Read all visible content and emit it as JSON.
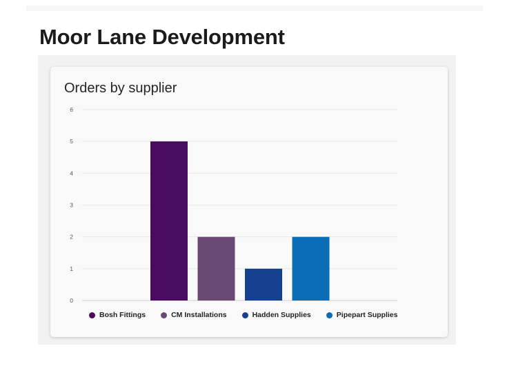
{
  "page": {
    "title": "Moor Lane Development"
  },
  "card": {
    "title": "Orders by supplier"
  },
  "chart_data": {
    "type": "bar",
    "title": "Orders by supplier",
    "categories": [
      "Bosh Fittings",
      "CM Installations",
      "Hadden Supplies",
      "Pipepart Supplies"
    ],
    "values": [
      5,
      2,
      1,
      2
    ],
    "colors": [
      "#4a0b5e",
      "#6a4a74",
      "#153f8f",
      "#0a6db5"
    ],
    "ylim": [
      0,
      6
    ],
    "yticks": [
      "0",
      "1",
      "2",
      "3",
      "4",
      "5",
      "6"
    ],
    "grid": true,
    "legend_position": "bottom",
    "xlabel": "",
    "ylabel": ""
  }
}
